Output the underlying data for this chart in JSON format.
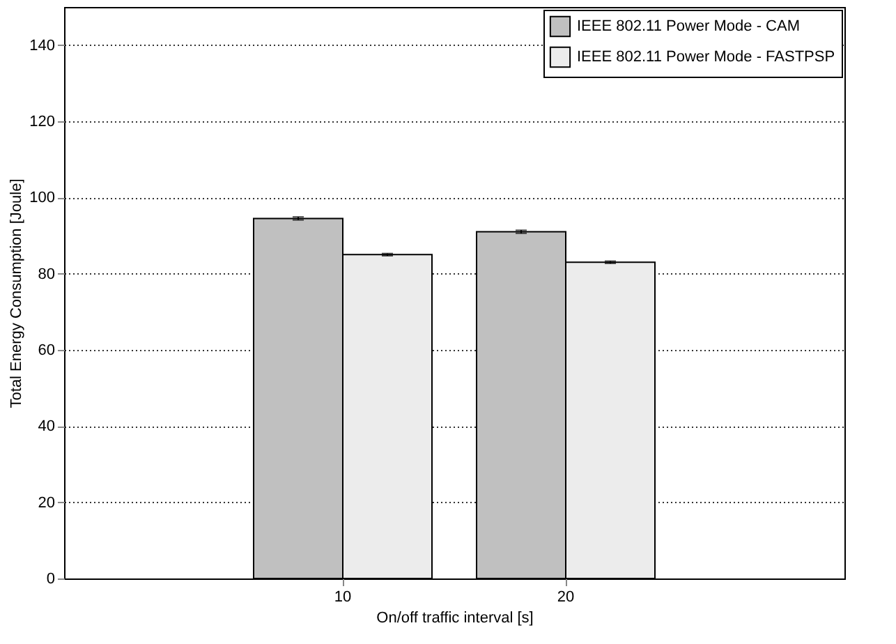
{
  "chart_data": {
    "type": "bar",
    "xlabel": "On/off traffic interval [s]",
    "ylabel": "Total Energy Consumption [Joule]",
    "categories": [
      "10",
      "20"
    ],
    "series": [
      {
        "name": "IEEE 802.11 Power Mode - CAM",
        "color": "#c0c0c0",
        "values": [
          94.5,
          91
        ],
        "errors": [
          0.4,
          0.4
        ]
      },
      {
        "name": "IEEE 802.11 Power Mode - FASTPSP",
        "color": "#ececec",
        "values": [
          85,
          83
        ],
        "errors": [
          0.3,
          0.3
        ]
      }
    ],
    "ylim": [
      0,
      150
    ],
    "yticks": [
      0,
      20,
      40,
      60,
      80,
      100,
      120,
      140
    ],
    "grid": "y",
    "legend": "top right"
  }
}
